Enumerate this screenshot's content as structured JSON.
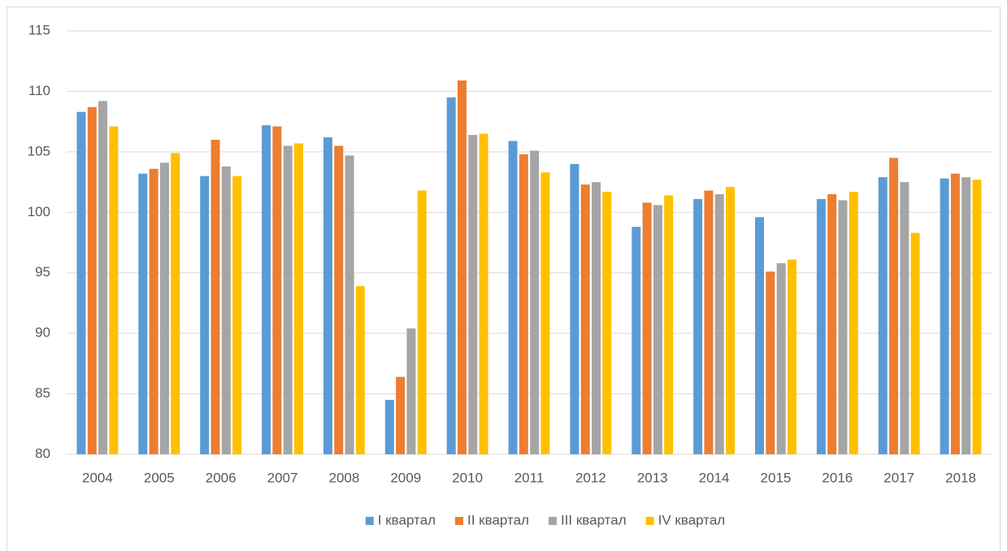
{
  "chart_data": {
    "type": "bar",
    "categories": [
      "2004",
      "2005",
      "2006",
      "2007",
      "2008",
      "2009",
      "2010",
      "2011",
      "2012",
      "2013",
      "2014",
      "2015",
      "2016",
      "2017",
      "2018"
    ],
    "series": [
      {
        "name": "I квартал",
        "color": "#5b9bd5",
        "values": [
          108.3,
          103.2,
          103.0,
          107.2,
          106.2,
          84.5,
          109.5,
          105.9,
          104.0,
          98.8,
          101.1,
          99.6,
          101.1,
          102.9,
          102.8
        ]
      },
      {
        "name": "II квартал",
        "color": "#ed7d31",
        "values": [
          108.7,
          103.6,
          106.0,
          107.1,
          105.5,
          86.4,
          110.9,
          104.8,
          102.3,
          100.8,
          101.8,
          95.1,
          101.5,
          104.5,
          103.2
        ]
      },
      {
        "name": "III квартал",
        "color": "#a5a5a5",
        "values": [
          109.2,
          104.1,
          103.8,
          105.5,
          104.7,
          90.4,
          106.4,
          105.1,
          102.5,
          100.6,
          101.5,
          95.8,
          101.0,
          102.5,
          102.9
        ]
      },
      {
        "name": "IV квартал",
        "color": "#ffc000",
        "values": [
          107.1,
          104.9,
          103.0,
          105.7,
          93.9,
          101.8,
          106.5,
          103.3,
          101.7,
          101.4,
          102.1,
          96.1,
          101.7,
          98.3,
          102.7
        ]
      }
    ],
    "ylim": [
      80,
      115
    ],
    "yticks": [
      80,
      85,
      90,
      95,
      100,
      105,
      110,
      115
    ],
    "grid": true,
    "legend": "bottom"
  }
}
